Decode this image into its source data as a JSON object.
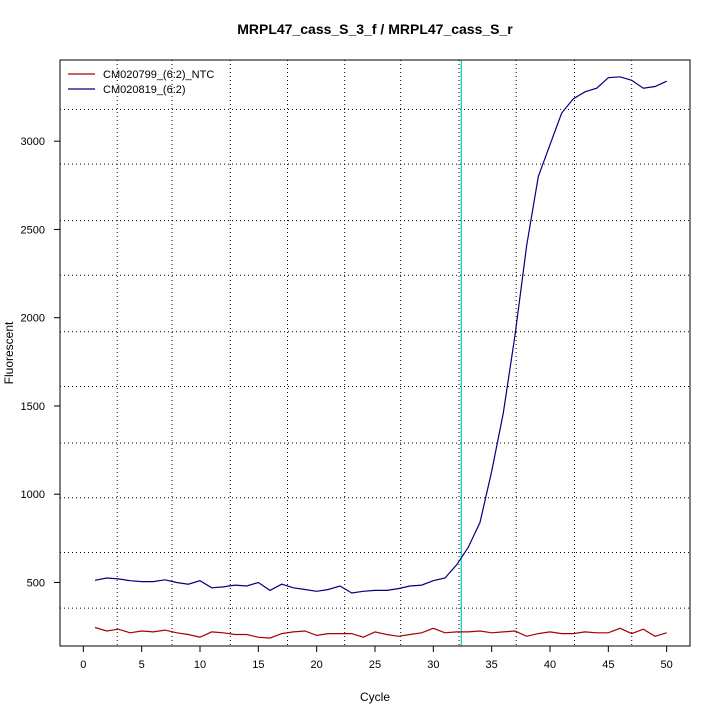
{
  "chart_data": {
    "type": "line",
    "title": "MRPL47_cass_S_3_f / MRPL47_cass_S_r",
    "xlabel": "Cycle",
    "ylabel": "Fluorescent",
    "xlim": [
      -2,
      52
    ],
    "ylim": [
      140,
      3460
    ],
    "xticks": [
      0,
      5,
      10,
      15,
      20,
      25,
      30,
      35,
      40,
      45,
      50
    ],
    "yticks": [
      500,
      1000,
      1500,
      2000,
      2500,
      3000
    ],
    "grid": true,
    "grid_x": [
      2.9,
      7.6,
      12.6,
      17.5,
      22.4,
      27.2,
      32.2,
      37.1,
      42.1,
      47.0
    ],
    "grid_y": [
      355,
      670,
      980,
      1290,
      1610,
      1920,
      2240,
      2550,
      2870,
      3180
    ],
    "threshold_x": 32.4,
    "threshold_color": "#00cccc",
    "legend_position": "top-left",
    "series": [
      {
        "name": "CM020799_(6:2)_NTC",
        "color": "#aa0000",
        "x": [
          1,
          2,
          3,
          4,
          5,
          6,
          7,
          8,
          9,
          10,
          11,
          12,
          13,
          14,
          15,
          16,
          17,
          18,
          19,
          20,
          21,
          22,
          23,
          24,
          25,
          26,
          27,
          28,
          29,
          30,
          31,
          32,
          33,
          34,
          35,
          36,
          37,
          38,
          39,
          40,
          41,
          42,
          43,
          44,
          45,
          46,
          47,
          48,
          49,
          50
        ],
        "values": [
          245,
          225,
          235,
          215,
          225,
          220,
          230,
          215,
          205,
          190,
          220,
          215,
          205,
          205,
          190,
          185,
          210,
          220,
          225,
          200,
          210,
          210,
          210,
          190,
          220,
          205,
          195,
          205,
          215,
          240,
          215,
          220,
          220,
          225,
          215,
          220,
          225,
          195,
          210,
          220,
          210,
          210,
          220,
          215,
          215,
          240,
          210,
          235,
          195,
          215
        ]
      },
      {
        "name": "CM020819_(6:2)",
        "color": "#000080",
        "x": [
          1,
          2,
          3,
          4,
          5,
          6,
          7,
          8,
          9,
          10,
          11,
          12,
          13,
          14,
          15,
          16,
          17,
          18,
          19,
          20,
          21,
          22,
          23,
          24,
          25,
          26,
          27,
          28,
          29,
          30,
          31,
          32,
          33,
          34,
          35,
          36,
          37,
          38,
          39,
          40,
          41,
          42,
          43,
          44,
          45,
          46,
          47,
          48,
          49,
          50
        ],
        "values": [
          512,
          525,
          520,
          510,
          505,
          505,
          515,
          500,
          490,
          510,
          470,
          475,
          485,
          480,
          500,
          455,
          490,
          470,
          460,
          450,
          460,
          480,
          440,
          450,
          455,
          455,
          465,
          480,
          485,
          510,
          525,
          600,
          700,
          840,
          1130,
          1460,
          1900,
          2410,
          2800,
          2980,
          3160,
          3240,
          3280,
          3300,
          3360,
          3365,
          3345,
          3300,
          3310,
          3340
        ]
      }
    ]
  }
}
